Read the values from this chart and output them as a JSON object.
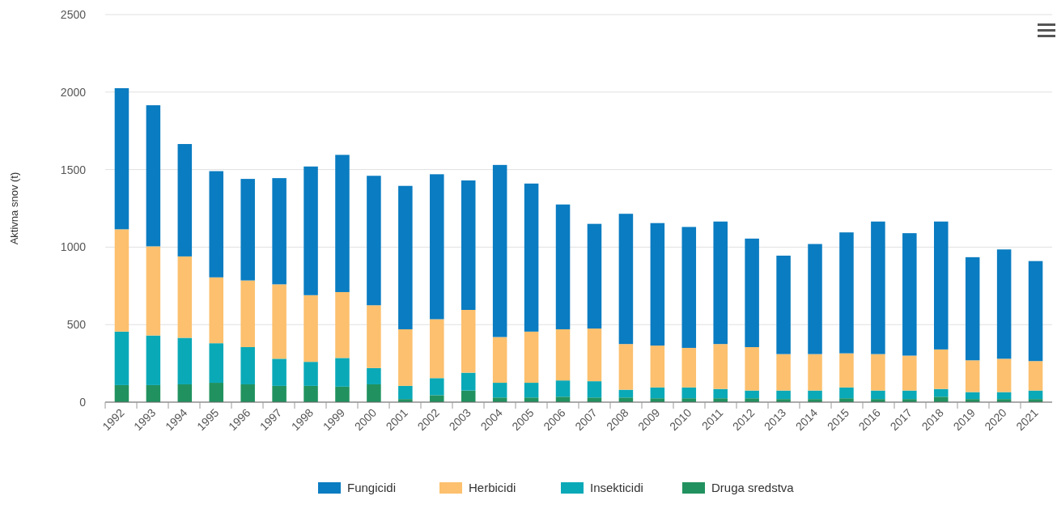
{
  "chart_data": {
    "type": "bar",
    "stacked": true,
    "ylabel": "Aktivna snov (t)",
    "categories": [
      "1992",
      "1993",
      "1994",
      "1995",
      "1996",
      "1997",
      "1998",
      "1999",
      "2000",
      "2001",
      "2002",
      "2003",
      "2004",
      "2005",
      "2006",
      "2007",
      "2008",
      "2009",
      "2010",
      "2011",
      "2012",
      "2013",
      "2014",
      "2015",
      "2016",
      "2017",
      "2018",
      "2019",
      "2020",
      "2021"
    ],
    "series": [
      {
        "name": "Druga sredstva",
        "color": "#21925f",
        "values": [
          110,
          110,
          115,
          125,
          115,
          105,
          105,
          100,
          115,
          20,
          45,
          75,
          30,
          30,
          35,
          30,
          30,
          25,
          25,
          25,
          25,
          20,
          20,
          25,
          20,
          20,
          35,
          20,
          20,
          20
        ]
      },
      {
        "name": "Insekticidi",
        "color": "#0aa9b8",
        "values": [
          345,
          320,
          300,
          255,
          240,
          175,
          155,
          185,
          105,
          85,
          110,
          115,
          95,
          95,
          105,
          105,
          50,
          70,
          70,
          60,
          50,
          55,
          55,
          70,
          55,
          55,
          50,
          45,
          45,
          55
        ]
      },
      {
        "name": "Herbicidi",
        "color": "#fcc06e",
        "values": [
          660,
          575,
          525,
          425,
          430,
          480,
          430,
          425,
          405,
          365,
          380,
          405,
          295,
          330,
          330,
          340,
          295,
          270,
          255,
          290,
          280,
          235,
          235,
          220,
          235,
          225,
          255,
          205,
          215,
          190
        ]
      },
      {
        "name": "Fungicidi",
        "color": "#0a7cc1",
        "values": [
          910,
          910,
          725,
          685,
          655,
          685,
          830,
          885,
          835,
          925,
          935,
          835,
          1110,
          955,
          805,
          675,
          840,
          790,
          780,
          790,
          700,
          635,
          710,
          780,
          855,
          790,
          825,
          665,
          705,
          645
        ]
      }
    ],
    "ylim": [
      0,
      2500
    ],
    "yticks": [
      0,
      500,
      1000,
      1500,
      2000,
      2500
    ],
    "grid": "y",
    "legend": "bottom"
  }
}
